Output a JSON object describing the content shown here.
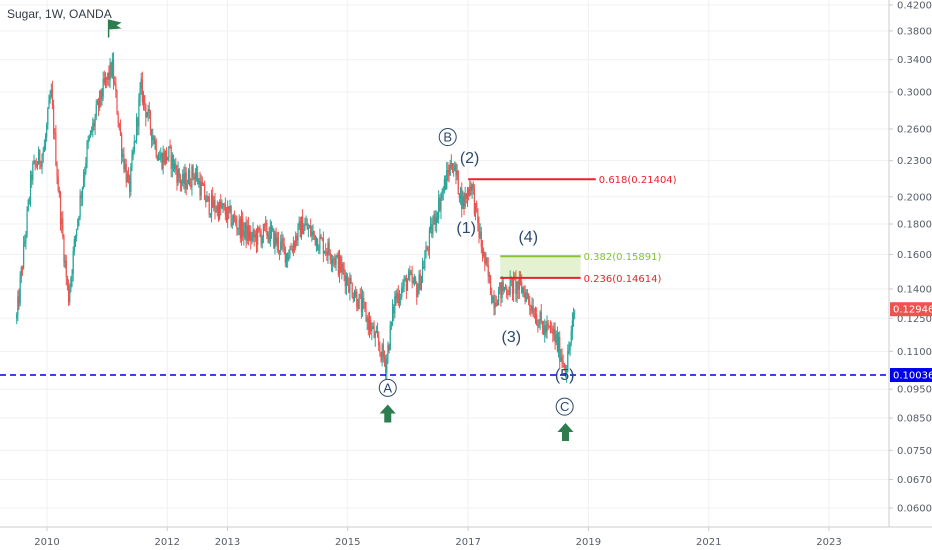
{
  "chart_data": {
    "type": "candlestick",
    "title": "Sugar, 1W, OANDA",
    "x_ticks": [
      "2010",
      "2012",
      "2013",
      "2015",
      "2017",
      "2019",
      "2021",
      "2023"
    ],
    "y_ticks": [
      "0.42000",
      "0.38000",
      "0.34000",
      "0.30000",
      "0.26000",
      "0.23000",
      "0.20000",
      "0.18000",
      "0.16000",
      "0.14000",
      "0.12500",
      "0.11000",
      "0.09500",
      "0.08500",
      "0.07500",
      "0.06700",
      "0.06000"
    ],
    "ylim": [
      0.055,
      0.425
    ],
    "y_scale": "log",
    "last_price": "0.12946",
    "support_price": "0.10036",
    "price_path": [
      [
        "2009-07-01",
        0.125
      ],
      [
        "2009-10-01",
        0.22
      ],
      [
        "2009-12-15",
        0.24
      ],
      [
        "2010-01-25",
        0.3
      ],
      [
        "2010-03-15",
        0.2
      ],
      [
        "2010-05-10",
        0.135
      ],
      [
        "2010-07-01",
        0.18
      ],
      [
        "2010-09-01",
        0.24
      ],
      [
        "2010-12-01",
        0.3
      ],
      [
        "2011-02-01",
        0.33
      ],
      [
        "2011-04-01",
        0.24
      ],
      [
        "2011-05-15",
        0.205
      ],
      [
        "2011-07-25",
        0.305
      ],
      [
        "2011-09-01",
        0.275
      ],
      [
        "2011-11-15",
        0.232
      ],
      [
        "2012-01-15",
        0.235
      ],
      [
        "2012-04-01",
        0.21
      ],
      [
        "2012-06-15",
        0.22
      ],
      [
        "2012-09-01",
        0.195
      ],
      [
        "2012-12-01",
        0.19
      ],
      [
        "2013-03-01",
        0.18
      ],
      [
        "2013-06-01",
        0.17
      ],
      [
        "2013-09-01",
        0.175
      ],
      [
        "2014-01-01",
        0.16
      ],
      [
        "2014-04-01",
        0.18
      ],
      [
        "2014-07-01",
        0.17
      ],
      [
        "2014-10-01",
        0.16
      ],
      [
        "2015-01-01",
        0.145
      ],
      [
        "2015-04-01",
        0.13
      ],
      [
        "2015-08-20",
        0.105
      ],
      [
        "2015-10-15",
        0.135
      ],
      [
        "2016-01-01",
        0.145
      ],
      [
        "2016-03-01",
        0.14
      ],
      [
        "2016-06-01",
        0.18
      ],
      [
        "2016-08-01",
        0.205
      ],
      [
        "2016-09-25",
        0.23
      ],
      [
        "2016-11-01",
        0.21
      ],
      [
        "2016-12-01",
        0.195
      ],
      [
        "2017-01-20",
        0.212
      ],
      [
        "2017-02-20",
        0.185
      ],
      [
        "2017-04-01",
        0.16
      ],
      [
        "2017-06-01",
        0.135
      ],
      [
        "2017-08-01",
        0.14
      ],
      [
        "2017-10-01",
        0.142
      ],
      [
        "2017-12-01",
        0.14
      ],
      [
        "2018-02-01",
        0.13
      ],
      [
        "2018-04-01",
        0.12
      ],
      [
        "2018-06-01",
        0.118
      ],
      [
        "2018-08-20",
        0.103
      ],
      [
        "2018-09-20",
        0.118
      ],
      [
        "2018-10-15",
        0.1295
      ]
    ],
    "fib_levels": [
      {
        "label": "0.618(0.21404)",
        "price": 0.21404,
        "from": "2017-01-01",
        "to": "2019-02-15",
        "color": "#e8222c"
      },
      {
        "label": "0.382(0.15891)",
        "price": 0.15891,
        "from": "2017-07-15",
        "to": "2018-11-15",
        "color": "#86c232"
      },
      {
        "label": "0.236(0.14614)",
        "price": 0.14614,
        "from": "2017-07-15",
        "to": "2018-11-15",
        "color": "#e8222c"
      }
    ],
    "wave_labels": [
      {
        "text": "(2)",
        "date": "2017-01-10",
        "price": 0.228
      },
      {
        "text": "(1)",
        "date": "2016-12-20",
        "price": 0.174
      },
      {
        "text": "(4)",
        "date": "2018-01-01",
        "price": 0.168
      },
      {
        "text": "(3)",
        "date": "2017-09-20",
        "price": 0.114
      },
      {
        "text": "(5)",
        "date": "2018-08-10",
        "price": 0.0985
      }
    ],
    "circled_labels": [
      {
        "text": "B",
        "date": "2016-08-30",
        "price": 0.252
      },
      {
        "text": "A",
        "date": "2015-09-01",
        "price": 0.0955
      },
      {
        "text": "C",
        "date": "2018-08-10",
        "price": 0.0888
      }
    ],
    "arrows": [
      {
        "date": "2015-09-01",
        "price": 0.0865
      },
      {
        "date": "2018-08-15",
        "price": 0.0805
      }
    ],
    "flag": {
      "date": "2011-01-10",
      "price": 0.385
    },
    "colors": {
      "up": "#26a69a",
      "down": "#ef5350",
      "support": "#0000ee",
      "last_badge": "#ef5350",
      "support_badge": "#0000ee",
      "arrow": "#2e7d4f",
      "flag": "#2e7d4f"
    }
  }
}
